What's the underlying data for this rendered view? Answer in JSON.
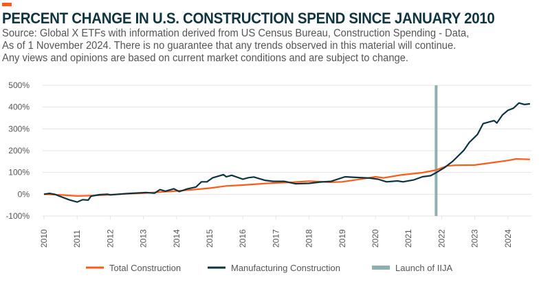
{
  "header": {
    "title": "PERCENT CHANGE IN U.S. CONSTRUCTION SPEND SINCE JANUARY 2010",
    "subtitle_lines": [
      "Source: Global X ETFs with information derived from US Census Bureau, Construction Spending - Data,",
      "As of 1 November 2024. There is no guarantee that any trends observed in this material will continue.",
      "Any views and opinions are based on current market conditions and are subject to change."
    ]
  },
  "colors": {
    "accent": "#ff5a14",
    "total": "#ff5a14",
    "manufacturing": "#0b3440",
    "iija": "#8fb0b0",
    "title": "#0f3540"
  },
  "chart_data": {
    "type": "line",
    "title": "PERCENT CHANGE IN U.S. CONSTRUCTION SPEND SINCE JANUARY 2010",
    "xlabel": "",
    "ylabel": "",
    "ylim": [
      -100,
      500
    ],
    "yticks": [
      -100,
      0,
      100,
      200,
      300,
      400,
      500
    ],
    "ytick_labels": [
      "-100%",
      "0%",
      "100%",
      "200%",
      "300%",
      "400%",
      "500%"
    ],
    "xtick_labels": [
      "2010",
      "2011",
      "2012",
      "2013",
      "2014",
      "2015",
      "2016",
      "2017",
      "2018",
      "2019",
      "2020",
      "2021",
      "2022",
      "2023",
      "2024"
    ],
    "grid": "horizontal",
    "legend": "bottom",
    "series": [
      {
        "name": "Total Construction",
        "color": "#ff5a14",
        "points": [
          [
            "2010-01",
            0
          ],
          [
            "2010-07",
            -3
          ],
          [
            "2011-01",
            -8
          ],
          [
            "2011-07",
            -6
          ],
          [
            "2012-01",
            -2
          ],
          [
            "2012-07",
            2
          ],
          [
            "2013-01",
            5
          ],
          [
            "2013-07",
            10
          ],
          [
            "2014-01",
            15
          ],
          [
            "2014-07",
            21
          ],
          [
            "2015-01",
            28
          ],
          [
            "2015-07",
            38
          ],
          [
            "2016-01",
            42
          ],
          [
            "2016-10",
            50
          ],
          [
            "2017-01",
            52
          ],
          [
            "2017-07",
            55
          ],
          [
            "2018-01",
            60
          ],
          [
            "2018-09",
            55
          ],
          [
            "2019-01",
            57
          ],
          [
            "2019-08",
            70
          ],
          [
            "2020-01",
            80
          ],
          [
            "2020-04",
            75
          ],
          [
            "2020-10",
            88
          ],
          [
            "2021-06",
            99
          ],
          [
            "2021-11",
            111
          ],
          [
            "2022-03",
            130
          ],
          [
            "2022-06",
            133
          ],
          [
            "2023-01",
            134
          ],
          [
            "2023-06",
            143
          ],
          [
            "2024-01",
            155
          ],
          [
            "2024-04",
            162
          ],
          [
            "2024-09",
            160
          ]
        ]
      },
      {
        "name": "Manufacturing Construction",
        "color": "#0b3440",
        "points": [
          [
            "2010-01",
            0
          ],
          [
            "2010-03",
            4
          ],
          [
            "2010-05",
            -1
          ],
          [
            "2010-10",
            -25
          ],
          [
            "2011-01",
            -36
          ],
          [
            "2011-03",
            -25
          ],
          [
            "2011-05",
            -27
          ],
          [
            "2011-06",
            -9
          ],
          [
            "2011-09",
            -2
          ],
          [
            "2011-12",
            0
          ],
          [
            "2012-01",
            -3
          ],
          [
            "2012-07",
            3
          ],
          [
            "2013-02",
            8
          ],
          [
            "2013-05",
            5
          ],
          [
            "2013-07",
            21
          ],
          [
            "2013-09",
            14
          ],
          [
            "2013-12",
            25
          ],
          [
            "2014-02",
            12
          ],
          [
            "2014-05",
            25
          ],
          [
            "2014-08",
            33
          ],
          [
            "2014-10",
            57
          ],
          [
            "2014-12",
            57
          ],
          [
            "2015-02",
            75
          ],
          [
            "2015-06",
            90
          ],
          [
            "2015-07",
            80
          ],
          [
            "2015-09",
            87
          ],
          [
            "2016-01",
            69
          ],
          [
            "2016-03",
            76
          ],
          [
            "2016-05",
            79
          ],
          [
            "2016-09",
            64
          ],
          [
            "2016-12",
            59
          ],
          [
            "2017-04",
            59
          ],
          [
            "2017-08",
            48
          ],
          [
            "2018-01",
            50
          ],
          [
            "2018-05",
            56
          ],
          [
            "2018-09",
            59
          ],
          [
            "2019-02",
            80
          ],
          [
            "2019-06",
            77
          ],
          [
            "2019-11",
            74
          ],
          [
            "2020-02",
            69
          ],
          [
            "2020-05",
            57
          ],
          [
            "2020-09",
            61
          ],
          [
            "2020-11",
            57
          ],
          [
            "2021-03",
            66
          ],
          [
            "2021-06",
            80
          ],
          [
            "2021-09",
            85
          ],
          [
            "2021-11",
            99
          ],
          [
            "2022-02",
            122
          ],
          [
            "2022-05",
            151
          ],
          [
            "2022-09",
            201
          ],
          [
            "2022-11",
            238
          ],
          [
            "2023-02",
            275
          ],
          [
            "2023-04",
            324
          ],
          [
            "2023-08",
            338
          ],
          [
            "2023-09",
            327
          ],
          [
            "2023-11",
            364
          ],
          [
            "2024-01",
            385
          ],
          [
            "2024-03",
            395
          ],
          [
            "2024-05",
            419
          ],
          [
            "2024-07",
            412
          ],
          [
            "2024-09",
            415
          ]
        ]
      }
    ],
    "annotations": [
      {
        "name": "Launch of IIJA",
        "type": "vertical-line",
        "x": "2021-11",
        "color": "#8fb0b0"
      }
    ]
  },
  "legend": {
    "items": [
      "Total Construction",
      "Manufacturing Construction",
      "Launch of IIJA"
    ]
  }
}
